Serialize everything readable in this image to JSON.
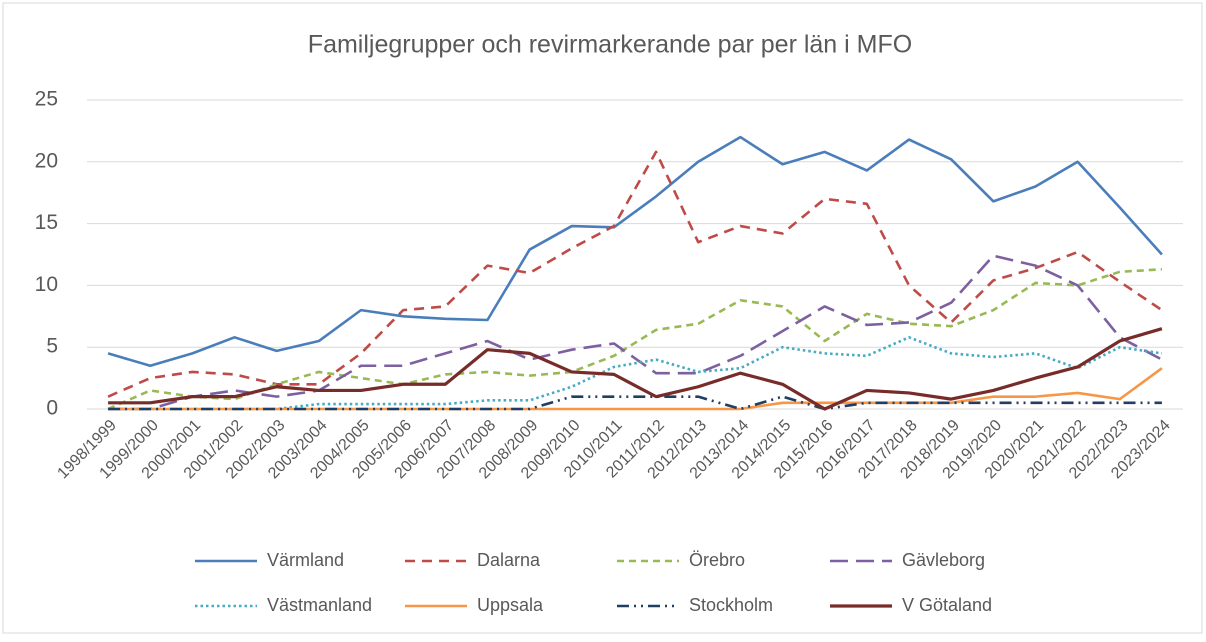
{
  "chart_data": {
    "type": "line",
    "title": "Familjegrupper och revirmarkerande par per län i MFO",
    "categories": [
      "1998/1999",
      "1999/2000",
      "2000/2001",
      "2001/2002",
      "2002/2003",
      "2003/2004",
      "2004/2005",
      "2005/2006",
      "2006/2007",
      "2007/2008",
      "2008/2009",
      "2009/2010",
      "2010/2011",
      "2011/2012",
      "2012/2013",
      "2013/2014",
      "2014/2015",
      "2015/2016",
      "2016/2017",
      "2017/2018",
      "2018/2019",
      "2019/2020",
      "2020/2021",
      "2021/2022",
      "2022/2023",
      "2023/2024"
    ],
    "series": [
      {
        "name": "Värmland",
        "color": "#4a7ebb",
        "dash": "solid",
        "values": [
          4.5,
          3.5,
          4.5,
          5.8,
          4.7,
          5.5,
          8,
          7.5,
          7.3,
          7.2,
          12.9,
          14.8,
          14.7,
          17.2,
          20,
          22,
          19.8,
          20.8,
          19.3,
          21.8,
          20.2,
          16.8,
          18,
          20,
          16.3,
          12.5
        ]
      },
      {
        "name": "Dalarna",
        "color": "#be4b48",
        "dash": "dash",
        "values": [
          1,
          2.5,
          3,
          2.8,
          2,
          2,
          4.5,
          8,
          8.3,
          11.6,
          11,
          13,
          14.8,
          20.8,
          13.5,
          14.8,
          14.2,
          17,
          16.6,
          10,
          7,
          10.4,
          11.4,
          12.7,
          10.3,
          8
        ]
      },
      {
        "name": "Örebro",
        "color": "#98b954",
        "dash": "short-dash",
        "values": [
          0,
          1.5,
          1,
          0.8,
          2,
          3,
          2.5,
          2,
          2.8,
          3,
          2.7,
          3,
          4.3,
          6.4,
          6.9,
          8.8,
          8.3,
          5.5,
          7.7,
          6.9,
          6.7,
          8,
          10.2,
          10,
          11.1,
          11.3
        ]
      },
      {
        "name": "Gävleborg",
        "color": "#7d60a0",
        "dash": "long-dash",
        "values": [
          0,
          0,
          1,
          1.5,
          1,
          1.5,
          3.5,
          3.5,
          4.5,
          5.5,
          4,
          4.8,
          5.3,
          2.9,
          2.9,
          4.3,
          6.3,
          8.3,
          6.8,
          7,
          8.6,
          12.4,
          11.6,
          10,
          5.8,
          4
        ]
      },
      {
        "name": "Västmanland",
        "color": "#46aac5",
        "dash": "dot",
        "values": [
          0,
          0,
          0,
          0,
          0,
          0.4,
          0.4,
          0.4,
          0.4,
          0.7,
          0.7,
          1.8,
          3.4,
          4,
          3,
          3.3,
          5,
          4.5,
          4.3,
          5.8,
          4.5,
          4.2,
          4.5,
          3.3,
          5,
          4.5
        ]
      },
      {
        "name": "Uppsala",
        "color": "#f79646",
        "dash": "solid",
        "values": [
          0,
          0,
          0,
          0,
          0,
          0,
          0,
          0,
          0,
          0,
          0,
          0,
          0,
          0,
          0,
          0,
          0.5,
          0.5,
          0.5,
          0.5,
          0.5,
          1,
          1,
          1.3,
          0.8,
          3.3
        ]
      },
      {
        "name": "Stockholm",
        "color": "#1f3e63",
        "dash": "dash-dot-dot",
        "values": [
          0,
          0,
          0,
          0,
          0,
          0,
          0,
          0,
          0,
          0,
          0,
          1,
          1,
          1,
          1,
          0,
          1,
          0,
          0.5,
          0.5,
          0.5,
          0.5,
          0.5,
          0.5,
          0.5,
          0.5
        ]
      },
      {
        "name": "V Götaland",
        "color": "#772c2a",
        "dash": "solid",
        "values": [
          0.5,
          0.5,
          1,
          1,
          1.8,
          1.5,
          1.5,
          2,
          2,
          4.8,
          4.5,
          3,
          2.8,
          1,
          1.8,
          2.9,
          2,
          0,
          1.5,
          1.3,
          0.8,
          1.5,
          2.5,
          3.4,
          5.5,
          6.5
        ]
      }
    ],
    "ylim": [
      0,
      25
    ],
    "yticks": [
      0,
      5,
      10,
      15,
      20,
      25
    ],
    "grid": true,
    "legend": "bottom"
  }
}
